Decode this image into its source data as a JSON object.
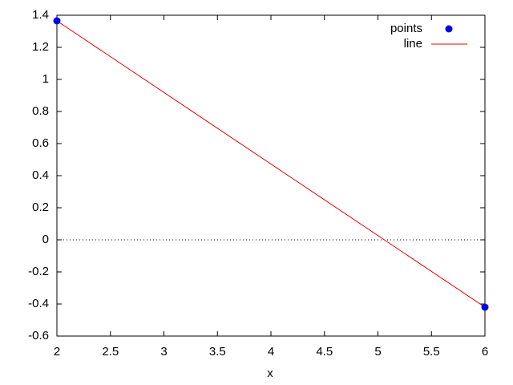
{
  "chart_data": {
    "type": "line",
    "xlabel": "x",
    "x": [
      2,
      6
    ],
    "series": [
      {
        "name": "points",
        "type": "scatter",
        "color": "#0000ee",
        "values": [
          1.365,
          -0.42
        ]
      },
      {
        "name": "line",
        "type": "line",
        "color": "#ee0000",
        "values": [
          1.365,
          -0.42
        ]
      }
    ],
    "xlim": [
      2,
      6
    ],
    "xticks": [
      2,
      2.5,
      3,
      3.5,
      4,
      4.5,
      5,
      5.5,
      6
    ],
    "ylim": [
      -0.6,
      1.4
    ],
    "yticks": [
      -0.6,
      -0.4,
      -0.2,
      0,
      0.2,
      0.4,
      0.6,
      0.8,
      1,
      1.2,
      1.4
    ],
    "zeroaxis": true,
    "legend": "top-right"
  }
}
